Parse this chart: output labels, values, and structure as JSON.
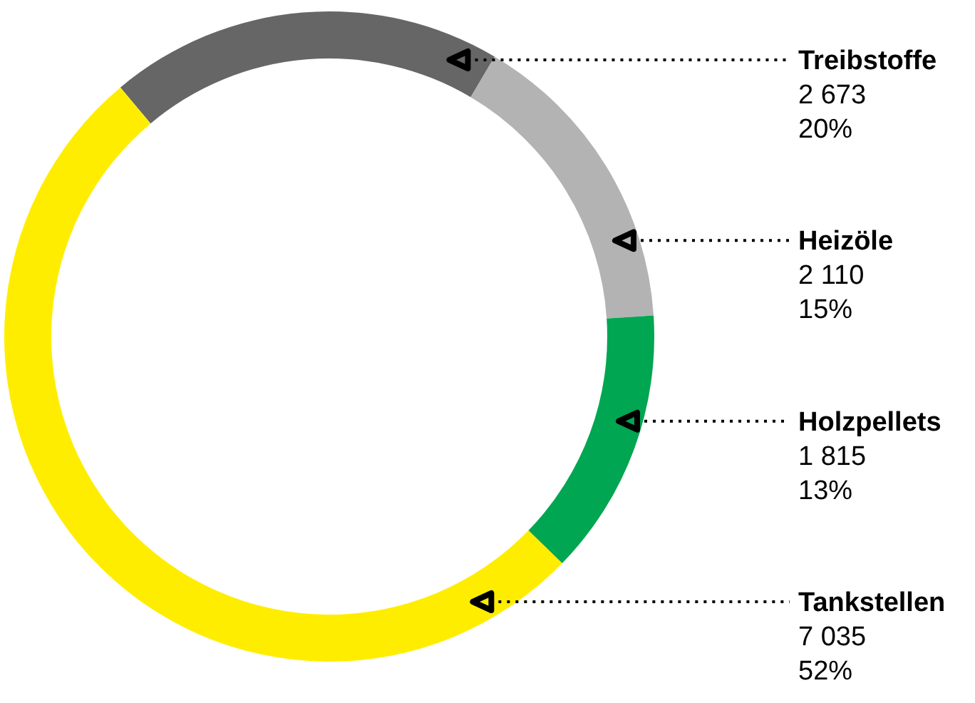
{
  "chart_data": {
    "type": "donut",
    "categories": [
      "Treibstoffe",
      "Heizöle",
      "Holzpellets",
      "Tankstellen"
    ],
    "values": [
      2673,
      2110,
      1815,
      7035
    ],
    "colors": [
      "#666666",
      "#b3b3b3",
      "#00a651",
      "#ffed00"
    ],
    "value_labels": [
      "2 673\n20%",
      "2 110\n15%",
      "1 815\n13%",
      "7 035\n52%"
    ]
  }
}
